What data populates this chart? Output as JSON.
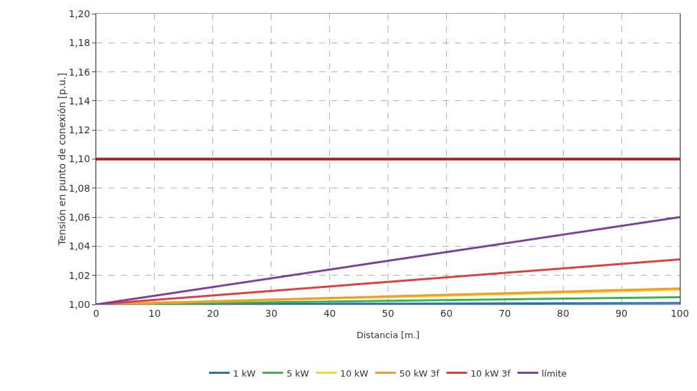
{
  "chart_data": {
    "type": "line",
    "xlabel": "Distancia [m.]",
    "ylabel": "Tensión en punto de conexión [p.u.]",
    "x": [
      0,
      50,
      100
    ],
    "series": [
      {
        "name": "1 kW",
        "color": "#2471b8",
        "values": [
          1,
          1.0005,
          1.001
        ]
      },
      {
        "name": "5 kW",
        "color": "#3cb44a",
        "values": [
          1,
          1.0025,
          1.005
        ]
      },
      {
        "name": "10 kW",
        "color": "#f2d82a",
        "values": [
          1,
          1.005,
          1.01
        ]
      },
      {
        "name": "50 kW 3f",
        "color": "#f39a2e",
        "values": [
          1,
          1.0055,
          1.011
        ]
      },
      {
        "name": "10 kW 3f",
        "color": "#d94040",
        "values": [
          1,
          1.0155,
          1.031
        ]
      },
      {
        "name": "límite",
        "color": "#7b3f9e",
        "values": [
          1,
          1.03,
          1.06
        ]
      }
    ],
    "ref_lines": [
      {
        "axis": "y",
        "value": 1.1,
        "color": "#b01e1e",
        "line_style": "solid"
      }
    ],
    "xlim": [
      0,
      100
    ],
    "xticks": [
      0,
      10,
      20,
      30,
      40,
      50,
      60,
      70,
      80,
      90,
      100
    ],
    "ylim": [
      1,
      1.2
    ],
    "yticks": [
      {
        "value": 1,
        "label": "1,00"
      },
      {
        "value": 1.02,
        "label": "1,02"
      },
      {
        "value": 1.04,
        "label": "1,04"
      },
      {
        "value": 1.06,
        "label": "1,06"
      },
      {
        "value": 1.08,
        "label": "1,08"
      },
      {
        "value": 1.1,
        "label": "1,10"
      },
      {
        "value": 1.12,
        "label": "1,12"
      },
      {
        "value": 1.14,
        "label": "1,14"
      },
      {
        "value": 1.16,
        "label": "1,16"
      },
      {
        "value": 1.18,
        "label": "1,18"
      },
      {
        "value": 1.2,
        "label": "1,20"
      }
    ],
    "grid": true,
    "legend": "bottom",
    "marker": "none",
    "line_style": "solid"
  }
}
